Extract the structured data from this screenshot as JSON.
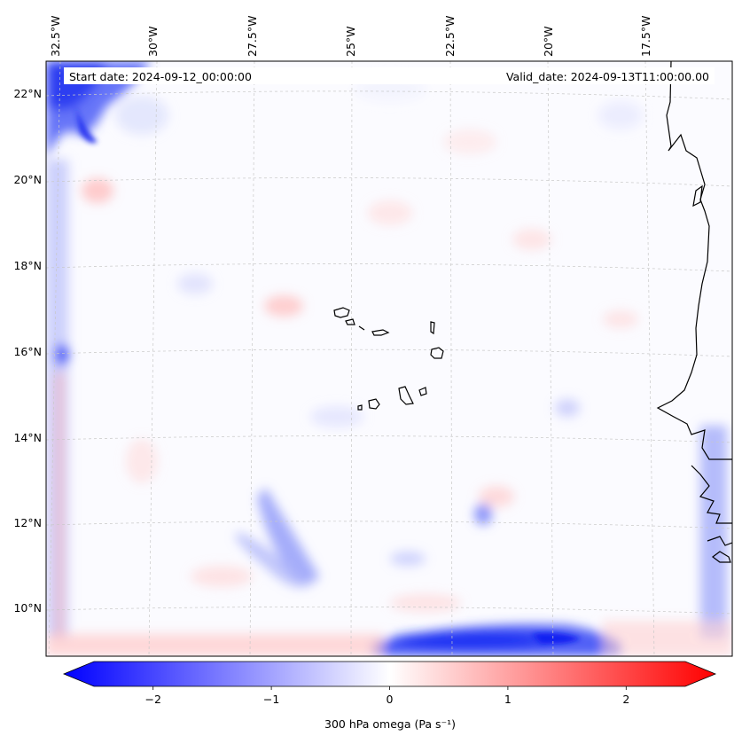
{
  "header": {
    "start_date": "Start date: 2024-09-12_00:00:00",
    "valid_date": "Valid_date: 2024-09-13T11:00:00.00"
  },
  "map": {
    "lon_labels": [
      "32.5°W",
      "30°W",
      "27.5°W",
      "25°W",
      "22.5°W",
      "20°W",
      "17.5°W"
    ],
    "lat_labels": [
      "22°N",
      "20°N",
      "18°N",
      "16°N",
      "14°N",
      "12°N",
      "10°N"
    ],
    "gridlines": true,
    "gridline_style": "dashed light gray",
    "features": [
      "Cape Verde islands",
      "West African coastline"
    ]
  },
  "colorbar": {
    "cmap": "bwr",
    "vmin": -2.5,
    "vmax": 2.5,
    "extend": "both",
    "ticks": [
      -2,
      -1,
      0,
      1,
      2
    ],
    "tick_labels": [
      "−2",
      "−1",
      "0",
      "1",
      "2"
    ],
    "label": "300 hPa omega (Pa s⁻¹)",
    "color_low": "#0000ff",
    "color_mid": "#ffffff",
    "color_high": "#ff0000"
  }
}
